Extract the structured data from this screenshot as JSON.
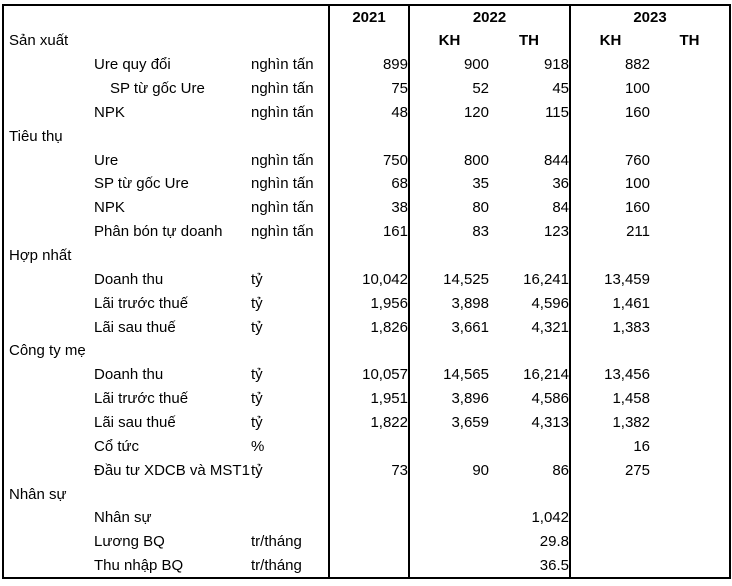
{
  "colors": {
    "background": "#ffffff",
    "text": "#000000",
    "border": "#000000"
  },
  "chart_data": {
    "type": "table",
    "title": "",
    "year_labels": [
      "2021",
      "2022",
      "2023"
    ],
    "subheaders": [
      "KH",
      "TH",
      "KH",
      "TH"
    ],
    "first_section_label": "Sản xuất",
    "columns": [
      "label",
      "unit",
      "2021",
      "2022 KH",
      "2022 TH",
      "2023 KH",
      "2023 TH"
    ],
    "rows": [
      {
        "label": "Ure quy đổi",
        "indent": 1,
        "section": false,
        "unit": "nghìn tấn",
        "values": [
          "899",
          "900",
          "918",
          "882",
          ""
        ]
      },
      {
        "label": "SP từ gốc Ure",
        "indent": 2,
        "section": false,
        "unit": "nghìn tấn",
        "values": [
          "75",
          "52",
          "45",
          "100",
          ""
        ]
      },
      {
        "label": "NPK",
        "indent": 1,
        "section": false,
        "unit": "nghìn tấn",
        "values": [
          "48",
          "120",
          "115",
          "160",
          ""
        ]
      },
      {
        "label": "Tiêu thụ",
        "indent": 0,
        "section": true,
        "unit": "",
        "values": [
          "",
          "",
          "",
          "",
          ""
        ]
      },
      {
        "label": "Ure",
        "indent": 1,
        "section": false,
        "unit": "nghìn tấn",
        "values": [
          "750",
          "800",
          "844",
          "760",
          ""
        ]
      },
      {
        "label": "SP từ gốc Ure",
        "indent": 1,
        "section": false,
        "unit": "nghìn tấn",
        "values": [
          "68",
          "35",
          "36",
          "100",
          ""
        ]
      },
      {
        "label": "NPK",
        "indent": 1,
        "section": false,
        "unit": "nghìn tấn",
        "values": [
          "38",
          "80",
          "84",
          "160",
          ""
        ]
      },
      {
        "label": "Phân bón tự doanh",
        "indent": 1,
        "section": false,
        "unit": "nghìn tấn",
        "values": [
          "161",
          "83",
          "123",
          "211",
          ""
        ]
      },
      {
        "label": "Hợp nhất",
        "indent": 0,
        "section": true,
        "unit": "",
        "values": [
          "",
          "",
          "",
          "",
          ""
        ]
      },
      {
        "label": "Doanh thu",
        "indent": 1,
        "section": false,
        "unit": "tỷ",
        "values": [
          "10,042",
          "14,525",
          "16,241",
          "13,459",
          ""
        ]
      },
      {
        "label": "Lãi trước thuế",
        "indent": 1,
        "section": false,
        "unit": "tỷ",
        "values": [
          "1,956",
          "3,898",
          "4,596",
          "1,461",
          ""
        ]
      },
      {
        "label": "Lãi sau thuế",
        "indent": 1,
        "section": false,
        "unit": "tỷ",
        "values": [
          "1,826",
          "3,661",
          "4,321",
          "1,383",
          ""
        ]
      },
      {
        "label": "Công ty mẹ",
        "indent": 0,
        "section": true,
        "unit": "",
        "values": [
          "",
          "",
          "",
          "",
          ""
        ]
      },
      {
        "label": "Doanh thu",
        "indent": 1,
        "section": false,
        "unit": "tỷ",
        "values": [
          "10,057",
          "14,565",
          "16,214",
          "13,456",
          ""
        ]
      },
      {
        "label": "Lãi trước thuế",
        "indent": 1,
        "section": false,
        "unit": "tỷ",
        "values": [
          "1,951",
          "3,896",
          "4,586",
          "1,458",
          ""
        ]
      },
      {
        "label": "Lãi sau thuế",
        "indent": 1,
        "section": false,
        "unit": "tỷ",
        "values": [
          "1,822",
          "3,659",
          "4,313",
          "1,382",
          ""
        ]
      },
      {
        "label": "Cổ tức",
        "indent": 1,
        "section": false,
        "unit": "%",
        "values": [
          "",
          "",
          "",
          "16",
          ""
        ]
      },
      {
        "label": "Đầu tư XDCB và MST1",
        "indent": 1,
        "section": false,
        "unit": "tỷ",
        "values": [
          "73",
          "90",
          "86",
          "275",
          ""
        ]
      },
      {
        "label": "Nhân sự",
        "indent": 0,
        "section": true,
        "unit": "",
        "values": [
          "",
          "",
          "",
          "",
          ""
        ]
      },
      {
        "label": "Nhân sự",
        "indent": 1,
        "section": false,
        "unit": "",
        "values": [
          "",
          "",
          "1,042",
          "",
          ""
        ]
      },
      {
        "label": "Lương BQ",
        "indent": 1,
        "section": false,
        "unit": "tr/tháng",
        "values": [
          "",
          "",
          "29.8",
          "",
          ""
        ]
      },
      {
        "label": "Thu nhập BQ",
        "indent": 1,
        "section": false,
        "unit": "tr/tháng",
        "values": [
          "",
          "",
          "36.5",
          "",
          ""
        ]
      }
    ],
    "layout": {
      "grid": "outer border plus vertical separators after unit column, 2021 column and 2022-TH column; no horizontal inner gridlines",
      "legend": "none",
      "value_alignment": "right"
    }
  }
}
